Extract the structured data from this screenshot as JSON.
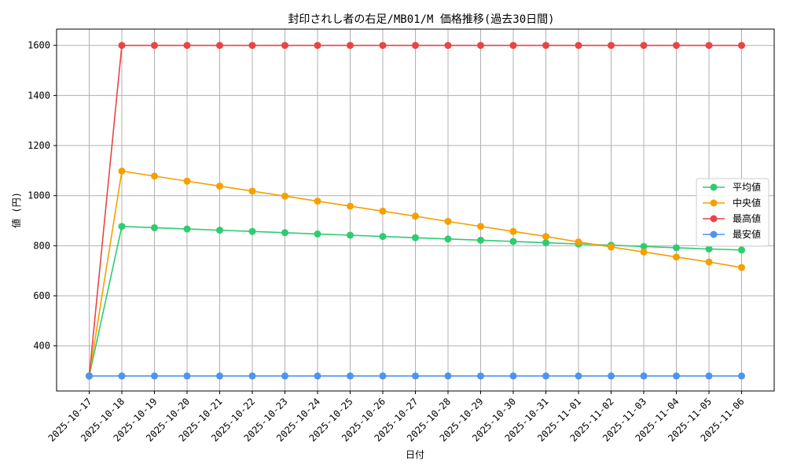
{
  "chart_data": {
    "type": "line",
    "title": "封印されし者の右足/MB01/M 価格推移(過去30日間)",
    "xlabel": "日付",
    "ylabel": "値 (円)",
    "ylim": [
      220,
      1665
    ],
    "yticks": [
      400,
      600,
      800,
      1000,
      1200,
      1400,
      1600
    ],
    "grid": true,
    "legend_position": "center-right",
    "categories": [
      "2025-10-17",
      "2025-10-18",
      "2025-10-19",
      "2025-10-20",
      "2025-10-21",
      "2025-10-22",
      "2025-10-23",
      "2025-10-24",
      "2025-10-25",
      "2025-10-26",
      "2025-10-27",
      "2025-10-28",
      "2025-10-29",
      "2025-10-30",
      "2025-10-31",
      "2025-11-01",
      "2025-11-02",
      "2025-11-03",
      "2025-11-04",
      "2025-11-05",
      "2025-11-06"
    ],
    "series": [
      {
        "name": "平均値",
        "color": "#2ecc71",
        "values": [
          280,
          877,
          872,
          867,
          862,
          857,
          852,
          847,
          842,
          837,
          832,
          827,
          822,
          817,
          812,
          807,
          802,
          797,
          792,
          787,
          783
        ]
      },
      {
        "name": "中央値",
        "color": "#f5a000",
        "values": [
          280,
          1098,
          1078,
          1058,
          1038,
          1018,
          998,
          978,
          958,
          938,
          918,
          897,
          877,
          857,
          837,
          815,
          795,
          775,
          755,
          735,
          713
        ]
      },
      {
        "name": "最高値",
        "color": "#e84545",
        "values": [
          280,
          1600,
          1600,
          1600,
          1600,
          1600,
          1600,
          1600,
          1600,
          1600,
          1600,
          1600,
          1600,
          1600,
          1600,
          1600,
          1600,
          1600,
          1600,
          1600,
          1600
        ]
      },
      {
        "name": "最安値",
        "color": "#4d94f0",
        "values": [
          280,
          280,
          280,
          280,
          280,
          280,
          280,
          280,
          280,
          280,
          280,
          280,
          280,
          280,
          280,
          280,
          280,
          280,
          280,
          280,
          280
        ]
      }
    ]
  }
}
